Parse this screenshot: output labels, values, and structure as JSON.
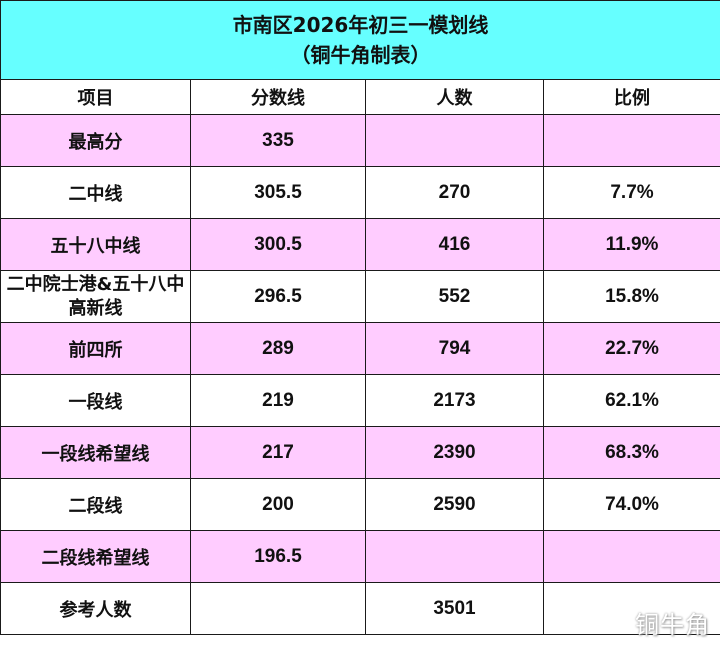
{
  "title": {
    "line1": "市南区2026年初三一模划线",
    "line2": "（铜牛角制表）"
  },
  "columns": [
    "项目",
    "分数线",
    "人数",
    "比例"
  ],
  "rows": [
    {
      "item": "最高分",
      "score": "335",
      "count": "",
      "ratio": ""
    },
    {
      "item": "二中线",
      "score": "305.5",
      "count": "270",
      "ratio": "7.7%"
    },
    {
      "item": "五十八中线",
      "score": "300.5",
      "count": "416",
      "ratio": "11.9%"
    },
    {
      "item": "二中院士港&五十八中高新线",
      "score": "296.5",
      "count": "552",
      "ratio": "15.8%"
    },
    {
      "item": "前四所",
      "score": "289",
      "count": "794",
      "ratio": "22.7%"
    },
    {
      "item": "一段线",
      "score": "219",
      "count": "2173",
      "ratio": "62.1%"
    },
    {
      "item": "一段线希望线",
      "score": "217",
      "count": "2390",
      "ratio": "68.3%"
    },
    {
      "item": "二段线",
      "score": "200",
      "count": "2590",
      "ratio": "74.0%"
    },
    {
      "item": "二段线希望线",
      "score": "196.5",
      "count": "",
      "ratio": ""
    },
    {
      "item": "参考人数",
      "score": "",
      "count": "3501",
      "ratio": ""
    }
  ],
  "watermark": "铜牛角",
  "colors": {
    "title_bg": "#66ffff",
    "pink_row": "#ffccff",
    "border": "#1a1a1a"
  }
}
